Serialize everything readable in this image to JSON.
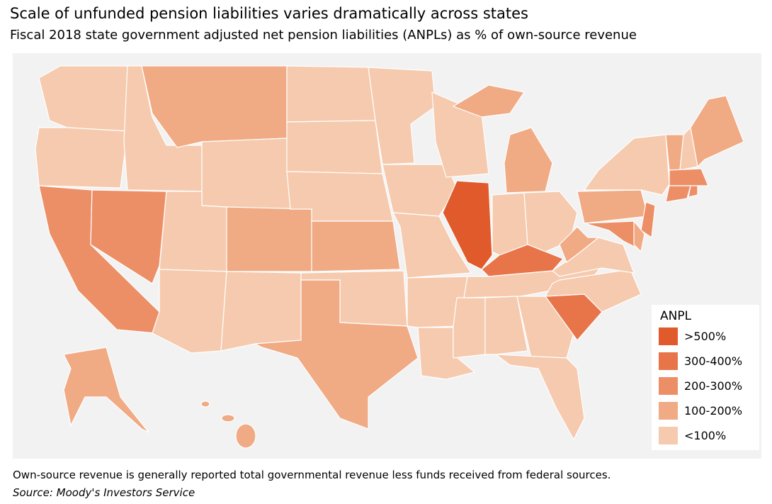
{
  "header": {
    "title": "Scale of unfunded pension liabilities varies dramatically across states",
    "subtitle": "Fiscal 2018 state government adjusted net pension liabilities (ANPLs) as % of own-source revenue"
  },
  "legend": {
    "title": "ANPL",
    "items": [
      {
        "label": ">500%",
        "color": "#e05a2b"
      },
      {
        "label": "300-400%",
        "color": "#e8754a"
      },
      {
        "label": "200-300%",
        "color": "#ec8f67"
      },
      {
        "label": "100-200%",
        "color": "#f0aa84"
      },
      {
        "label": "<100%",
        "color": "#f6caae"
      }
    ]
  },
  "footer": {
    "note": "Own-source revenue is generally reported total governmental revenue less funds received from federal sources.",
    "source": "Source: Moody's Investors Service"
  }
}
